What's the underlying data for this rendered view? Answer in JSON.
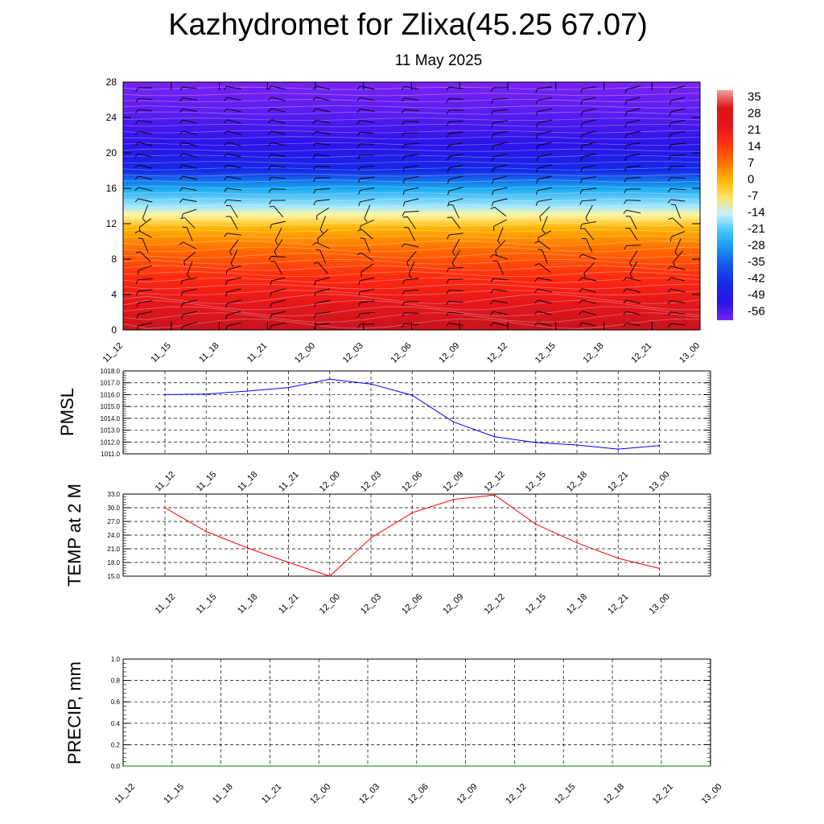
{
  "header": {
    "title": "Kazhydromet for Zlixa(45.25 67.07)",
    "subtitle": "11 May 2025"
  },
  "chart_data": [
    {
      "type": "heatmap",
      "name": "vertical-profile",
      "x_categories": [
        "11_12",
        "11_15",
        "11_18",
        "11_21",
        "12_00",
        "12_03",
        "12_06",
        "12_09",
        "12_12",
        "12_15",
        "12_18",
        "12_21",
        "13_00"
      ],
      "y_ticks": [
        0,
        4,
        8,
        12,
        16,
        20,
        24,
        28
      ],
      "ylim": [
        0,
        28
      ],
      "colorbar_labels": [
        "35",
        "28",
        "21",
        "14",
        "7",
        "0",
        "-7",
        "-14",
        "-21",
        "-28",
        "-35",
        "-42",
        "-49",
        "-56"
      ],
      "color_stops": [
        {
          "level": 0,
          "color": "#c8141e"
        },
        {
          "level": 3,
          "color": "#e4161c"
        },
        {
          "level": 6,
          "color": "#ff2a10"
        },
        {
          "level": 9,
          "color": "#ff6a00"
        },
        {
          "level": 11.5,
          "color": "#ffb400"
        },
        {
          "level": 13,
          "color": "#fff5a0"
        },
        {
          "level": 14,
          "color": "#9ee6ff"
        },
        {
          "level": 16,
          "color": "#16a8f0"
        },
        {
          "level": 18,
          "color": "#1428e6"
        },
        {
          "level": 21,
          "color": "#2a14e8"
        },
        {
          "level": 24.5,
          "color": "#5a1cf0"
        },
        {
          "level": 28,
          "color": "#7a22f2"
        }
      ],
      "colorbar_colors": [
        "#f4a0a0",
        "#dc1414",
        "#e4141c",
        "#ff3010",
        "#ff6a00",
        "#ffb000",
        "#ffe060",
        "#c8f0ff",
        "#40c4ff",
        "#1690f0",
        "#1450e6",
        "#1428e6",
        "#2814e8",
        "#7a22f2"
      ]
    },
    {
      "type": "line",
      "name": "pmsl",
      "ylabel": "PMSL",
      "categories": [
        "11_12",
        "11_15",
        "11_18",
        "11_21",
        "12_00",
        "12_03",
        "12_06",
        "12_09",
        "12_12",
        "12_15",
        "12_18",
        "12_21",
        "13_00"
      ],
      "values": [
        1016.0,
        1016.05,
        1016.3,
        1016.6,
        1017.3,
        1016.9,
        1015.95,
        1013.7,
        1012.45,
        1011.95,
        1011.75,
        1011.4,
        1011.7
      ],
      "ylim": [
        1011.0,
        1018.0
      ],
      "y_ticks": [
        "1011.0",
        "1012.0",
        "1013.0",
        "1014.0",
        "1015.0",
        "1016.0",
        "1017.0",
        "1018.0"
      ],
      "line_color": "#0000ff",
      "grid": true
    },
    {
      "type": "line",
      "name": "temp",
      "ylabel": "TEMP at 2 M",
      "categories": [
        "11_12",
        "11_15",
        "11_18",
        "11_21",
        "12_00",
        "12_03",
        "12_06",
        "12_09",
        "12_12",
        "12_15",
        "12_18",
        "12_21",
        "13_00"
      ],
      "values": [
        30.0,
        24.8,
        21.2,
        18.0,
        15.0,
        23.4,
        28.9,
        31.8,
        32.8,
        26.4,
        22.3,
        18.9,
        16.7
      ],
      "ylim": [
        15.0,
        33.0
      ],
      "y_ticks": [
        "15.0",
        "18.0",
        "21.0",
        "24.0",
        "27.0",
        "30.0",
        "33.0"
      ],
      "line_color": "#ff0000",
      "grid": true
    },
    {
      "type": "line",
      "name": "precip",
      "ylabel": "PRECIP, mm",
      "categories": [
        "11_12",
        "11_15",
        "11_18",
        "11_21",
        "12_00",
        "12_03",
        "12_06",
        "12_09",
        "12_12",
        "12_15",
        "12_18",
        "12_21",
        "13_00"
      ],
      "values": [
        0,
        0,
        0,
        0,
        0,
        0,
        0,
        0,
        0,
        0,
        0,
        0,
        0
      ],
      "ylim": [
        0.0,
        1.0
      ],
      "y_ticks": [
        "0.0",
        "0.2",
        "0.4",
        "0.6",
        "0.8",
        "1.0"
      ],
      "line_color": "#008000",
      "grid": true
    }
  ]
}
